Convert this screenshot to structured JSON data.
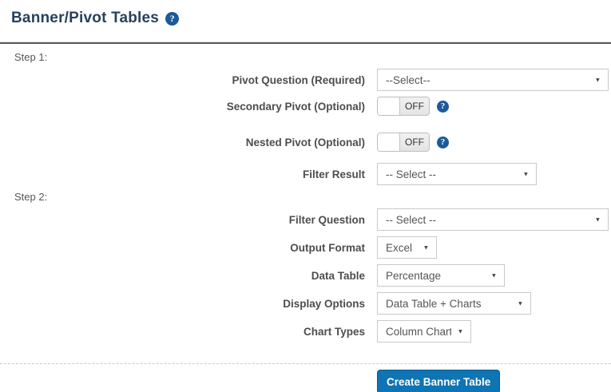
{
  "header": {
    "title": "Banner/Pivot Tables"
  },
  "icons": {
    "help_glyph": "?",
    "select_caret": "▼"
  },
  "step1": {
    "label": "Step 1:",
    "pivot_question": {
      "label": "Pivot Question (Required)",
      "value": "--Select--"
    },
    "secondary_pivot": {
      "label": "Secondary Pivot (Optional)",
      "value": "OFF"
    },
    "nested_pivot": {
      "label": "Nested Pivot (Optional)",
      "value": "OFF"
    },
    "filter_result": {
      "label": "Filter Result",
      "value": "-- Select --"
    }
  },
  "step2": {
    "label": "Step 2:",
    "filter_question": {
      "label": "Filter Question",
      "value": "-- Select --"
    },
    "output_format": {
      "label": "Output Format",
      "value": "Excel"
    },
    "data_table": {
      "label": "Data Table",
      "value": "Percentage"
    },
    "display_options": {
      "label": "Display Options",
      "value": "Data Table + Charts"
    },
    "chart_types": {
      "label": "Chart Types",
      "value": "Column Chart"
    }
  },
  "footer": {
    "create_button": "Create Banner Table"
  },
  "colors": {
    "accent": "#0e74b4",
    "title": "#26425e",
    "help_icon": "#1d5a9b",
    "label_text": "#4d4d4d",
    "control_border": "#c9c9c9"
  }
}
